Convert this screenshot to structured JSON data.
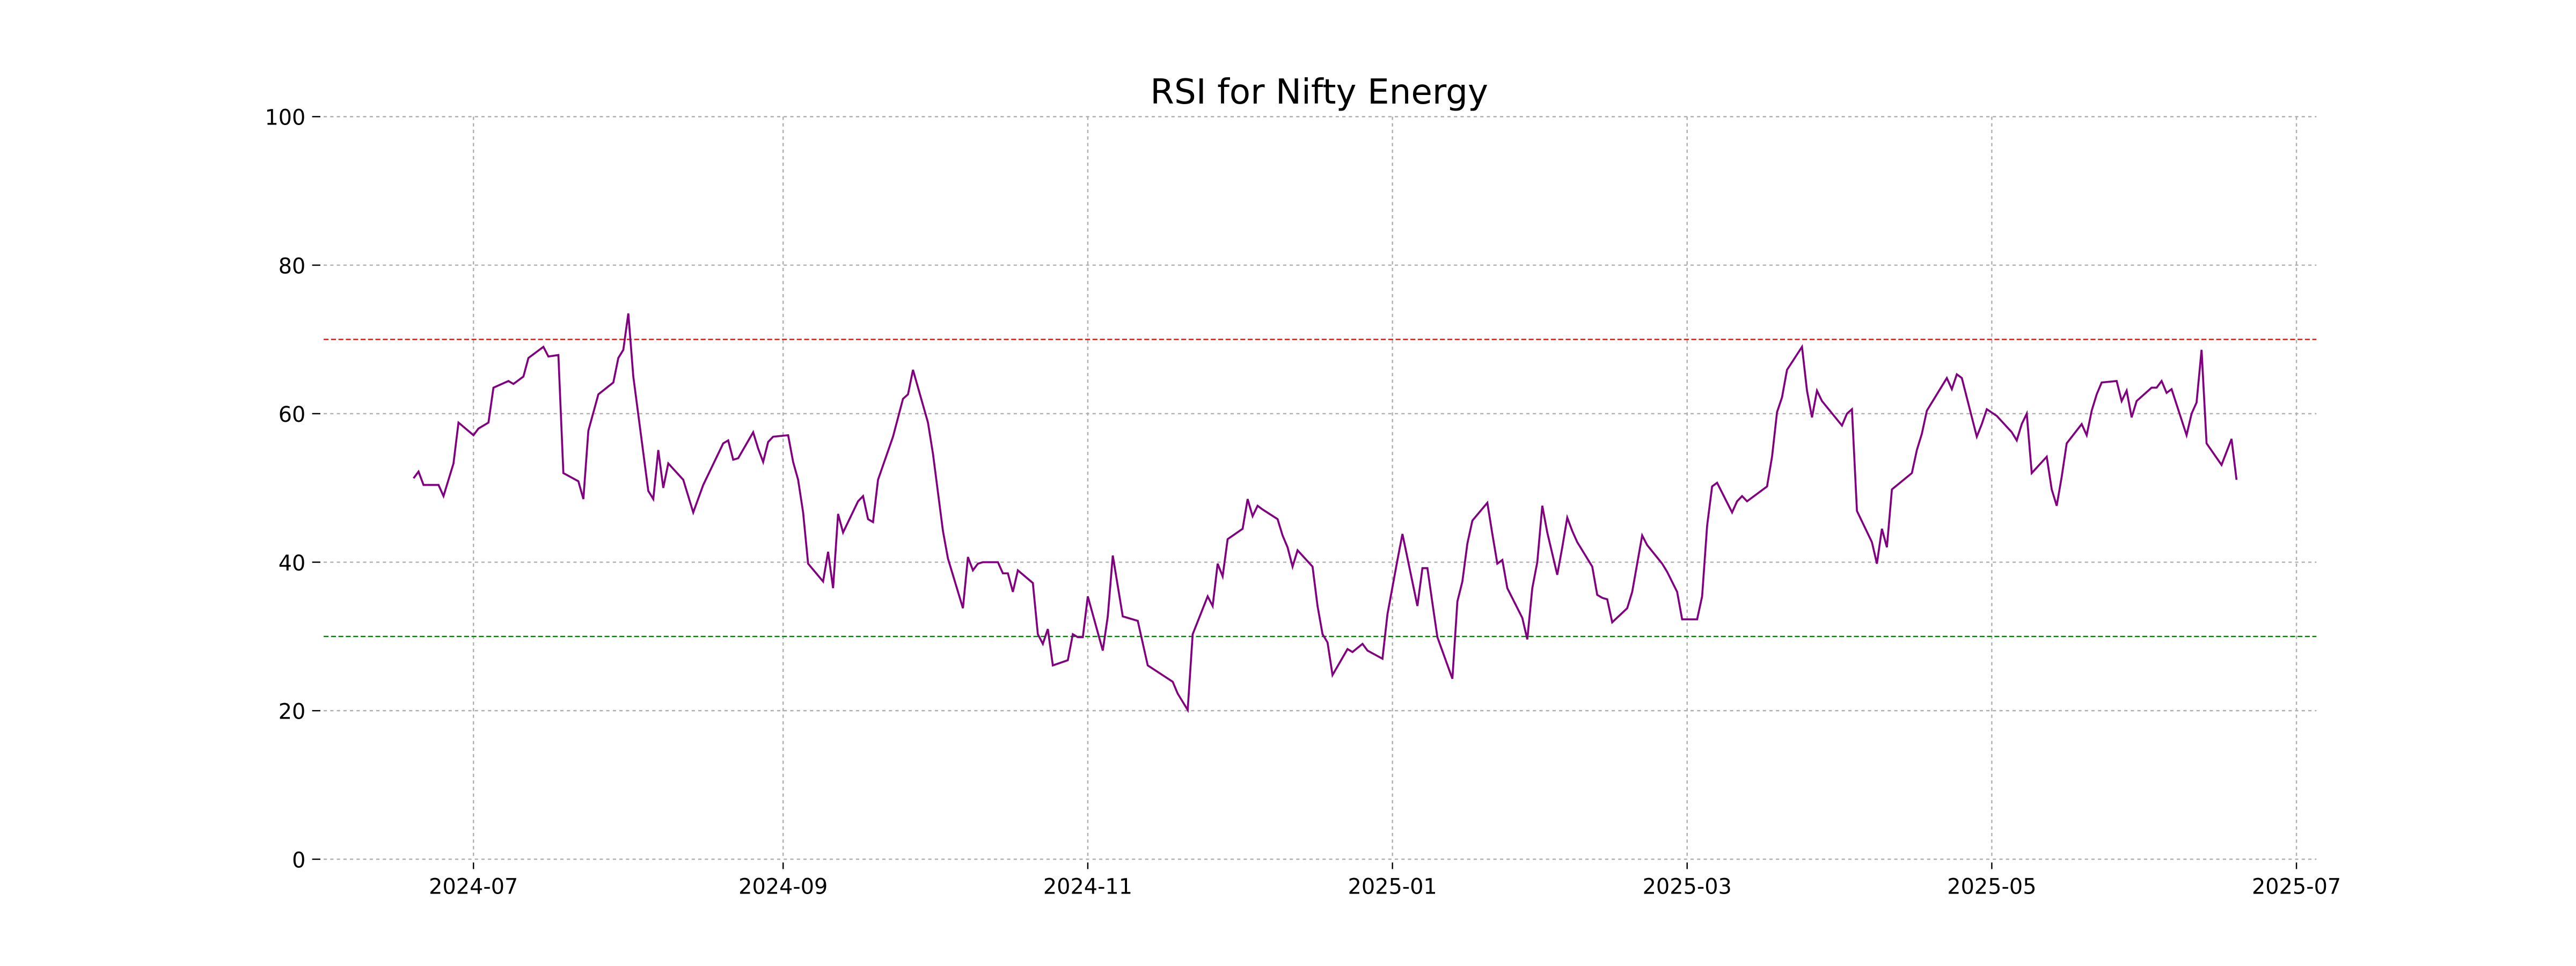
{
  "chart_data": {
    "type": "line",
    "title": "RSI for Nifty Energy",
    "x": [
      "2024-06-19",
      "2024-06-20",
      "2024-06-21",
      "2024-06-24",
      "2024-06-25",
      "2024-06-27",
      "2024-06-28",
      "2024-07-01",
      "2024-07-02",
      "2024-07-04",
      "2024-07-05",
      "2024-07-08",
      "2024-07-09",
      "2024-07-11",
      "2024-07-12",
      "2024-07-15",
      "2024-07-16",
      "2024-07-18",
      "2024-07-19",
      "2024-07-22",
      "2024-07-23",
      "2024-07-24",
      "2024-07-26",
      "2024-07-29",
      "2024-07-30",
      "2024-07-31",
      "2024-08-01",
      "2024-08-02",
      "2024-08-05",
      "2024-08-06",
      "2024-08-07",
      "2024-08-08",
      "2024-08-09",
      "2024-08-12",
      "2024-08-13",
      "2024-08-14",
      "2024-08-16",
      "2024-08-19",
      "2024-08-20",
      "2024-08-21",
      "2024-08-22",
      "2024-08-23",
      "2024-08-26",
      "2024-08-27",
      "2024-08-28",
      "2024-08-29",
      "2024-08-30",
      "2024-09-02",
      "2024-09-03",
      "2024-09-04",
      "2024-09-05",
      "2024-09-06",
      "2024-09-09",
      "2024-09-10",
      "2024-09-11",
      "2024-09-12",
      "2024-09-13",
      "2024-09-16",
      "2024-09-17",
      "2024-09-18",
      "2024-09-19",
      "2024-09-20",
      "2024-09-23",
      "2024-09-25",
      "2024-09-26",
      "2024-09-27",
      "2024-09-30",
      "2024-10-01",
      "2024-10-03",
      "2024-10-04",
      "2024-10-07",
      "2024-10-08",
      "2024-10-09",
      "2024-10-10",
      "2024-10-11",
      "2024-10-14",
      "2024-10-15",
      "2024-10-16",
      "2024-10-17",
      "2024-10-18",
      "2024-10-21",
      "2024-10-22",
      "2024-10-23",
      "2024-10-24",
      "2024-10-25",
      "2024-10-28",
      "2024-10-29",
      "2024-10-30",
      "2024-10-31",
      "2024-11-01",
      "2024-11-04",
      "2024-11-05",
      "2024-11-06",
      "2024-11-08",
      "2024-11-11",
      "2024-11-13",
      "2024-11-18",
      "2024-11-19",
      "2024-11-21",
      "2024-11-22",
      "2024-11-25",
      "2024-11-26",
      "2024-11-27",
      "2024-11-28",
      "2024-11-29",
      "2024-12-02",
      "2024-12-03",
      "2024-12-04",
      "2024-12-05",
      "2024-12-06",
      "2024-12-09",
      "2024-12-10",
      "2024-12-11",
      "2024-12-12",
      "2024-12-13",
      "2024-12-16",
      "2024-12-17",
      "2024-12-18",
      "2024-12-19",
      "2024-12-20",
      "2024-12-23",
      "2024-12-24",
      "2024-12-26",
      "2024-12-27",
      "2024-12-30",
      "2024-12-31",
      "2025-01-02",
      "2025-01-03",
      "2025-01-06",
      "2025-01-07",
      "2025-01-08",
      "2025-01-09",
      "2025-01-10",
      "2025-01-13",
      "2025-01-14",
      "2025-01-15",
      "2025-01-16",
      "2025-01-17",
      "2025-01-20",
      "2025-01-21",
      "2025-01-22",
      "2025-01-23",
      "2025-01-24",
      "2025-01-27",
      "2025-01-28",
      "2025-01-29",
      "2025-01-30",
      "2025-01-31",
      "2025-02-01",
      "2025-02-03",
      "2025-02-04",
      "2025-02-05",
      "2025-02-06",
      "2025-02-07",
      "2025-02-10",
      "2025-02-11",
      "2025-02-12",
      "2025-02-13",
      "2025-02-14",
      "2025-02-17",
      "2025-02-18",
      "2025-02-19",
      "2025-02-20",
      "2025-02-21",
      "2025-02-24",
      "2025-02-25",
      "2025-02-27",
      "2025-02-28",
      "2025-03-03",
      "2025-03-04",
      "2025-03-05",
      "2025-03-06",
      "2025-03-07",
      "2025-03-10",
      "2025-03-11",
      "2025-03-12",
      "2025-03-13",
      "2025-03-17",
      "2025-03-18",
      "2025-03-19",
      "2025-03-20",
      "2025-03-21",
      "2025-03-24",
      "2025-03-25",
      "2025-03-26",
      "2025-03-27",
      "2025-03-28",
      "2025-04-01",
      "2025-04-02",
      "2025-04-03",
      "2025-04-04",
      "2025-04-07",
      "2025-04-08",
      "2025-04-09",
      "2025-04-10",
      "2025-04-11",
      "2025-04-15",
      "2025-04-16",
      "2025-04-17",
      "2025-04-18",
      "2025-04-21",
      "2025-04-22",
      "2025-04-23",
      "2025-04-24",
      "2025-04-25",
      "2025-04-28",
      "2025-04-29",
      "2025-04-30",
      "2025-05-02",
      "2025-05-05",
      "2025-05-06",
      "2025-05-07",
      "2025-05-08",
      "2025-05-09",
      "2025-05-12",
      "2025-05-13",
      "2025-05-14",
      "2025-05-15",
      "2025-05-16",
      "2025-05-19",
      "2025-05-20",
      "2025-05-21",
      "2025-05-22",
      "2025-05-23",
      "2025-05-26",
      "2025-05-27",
      "2025-05-28",
      "2025-05-29",
      "2025-05-30",
      "2025-06-02",
      "2025-06-03",
      "2025-06-04",
      "2025-06-05",
      "2025-06-06",
      "2025-06-09",
      "2025-06-10",
      "2025-06-11",
      "2025-06-12",
      "2025-06-13",
      "2025-06-16",
      "2025-06-18",
      "2025-06-19"
    ],
    "series": [
      {
        "name": "RSI",
        "color": "purple",
        "values": [
          51.3,
          52.2,
          50.4,
          50.4,
          48.9,
          53.3,
          58.8,
          57.1,
          58,
          58.8,
          63.5,
          64.4,
          64,
          65,
          67.5,
          69,
          67.7,
          67.9,
          52,
          50.9,
          48.5,
          57.7,
          62.6,
          64.2,
          67.5,
          68.6,
          73.5,
          65,
          49.6,
          48.5,
          55.1,
          50,
          53.3,
          51.1,
          48.9,
          46.7,
          50.4,
          54.6,
          56,
          56.4,
          53.8,
          54,
          57.5,
          55.3,
          53.5,
          56.2,
          56.9,
          57.1,
          53.5,
          51.1,
          46.7,
          39.8,
          37.4,
          41.4,
          36.5,
          46.5,
          44,
          48.2,
          48.9,
          45.8,
          45.4,
          51.1,
          56.9,
          62,
          62.6,
          65.9,
          58.8,
          54.6,
          44.2,
          40.5,
          33.8,
          40.7,
          38.9,
          39.8,
          40,
          40,
          38.5,
          38.5,
          36,
          38.9,
          37.2,
          30.3,
          29,
          31,
          26.1,
          26.8,
          30.3,
          29.9,
          29.9,
          35.4,
          28.1,
          32.7,
          40.9,
          32.7,
          32.1,
          26.1,
          23.9,
          22.3,
          20.1,
          30.3,
          35.4,
          34.1,
          39.8,
          38.1,
          43.1,
          44.5,
          48.5,
          46.2,
          47.6,
          47.1,
          45.8,
          43.6,
          42,
          39.4,
          41.6,
          39.4,
          34.1,
          30.3,
          29.2,
          24.8,
          28.3,
          27.9,
          29,
          28.1,
          27,
          33,
          40.3,
          43.8,
          34.1,
          39.2,
          39.2,
          34.5,
          29.9,
          24.3,
          34.7,
          37.4,
          42.5,
          45.6,
          48,
          43.8,
          39.8,
          40.3,
          36.5,
          32.5,
          29.6,
          36.5,
          40,
          47.6,
          44,
          38.3,
          42,
          46,
          44.2,
          42.7,
          39.4,
          35.6,
          35.2,
          35,
          31.9,
          33.8,
          36,
          39.8,
          43.6,
          42.3,
          39.8,
          38.7,
          36,
          32.3,
          32.3,
          35.4,
          44.9,
          50.2,
          50.7,
          46.7,
          48.2,
          48.9,
          48.2,
          50.2,
          54.2,
          60.2,
          62.2,
          65.9,
          69,
          63.1,
          59.5,
          63.1,
          61.7,
          58.4,
          60,
          60.6,
          46.9,
          42.7,
          39.8,
          44.5,
          42,
          49.8,
          52,
          55.1,
          57.3,
          60.4,
          63.7,
          64.8,
          63.3,
          65.3,
          64.8,
          56.9,
          58.6,
          60.6,
          59.7,
          57.5,
          56.4,
          58.6,
          60,
          52,
          54.2,
          49.8,
          47.6,
          51.5,
          56,
          58.6,
          57.1,
          60.4,
          62.6,
          64.2,
          64.4,
          61.7,
          63.1,
          59.5,
          61.7,
          63.5,
          63.5,
          64.4,
          62.8,
          63.3,
          57.1,
          60,
          61.5,
          68.6,
          56,
          53.1,
          56.6,
          51.1
        ]
      }
    ],
    "hlines": [
      {
        "value": 70,
        "color": "red"
      },
      {
        "value": 30,
        "color": "green"
      }
    ],
    "xlim": [
      "2024-06-01",
      "2025-07-05"
    ],
    "xticks": [
      {
        "value": "2024-07-01",
        "label": "2024-07"
      },
      {
        "value": "2024-09-01",
        "label": "2024-09"
      },
      {
        "value": "2024-11-01",
        "label": "2024-11"
      },
      {
        "value": "2025-01-01",
        "label": "2025-01"
      },
      {
        "value": "2025-03-01",
        "label": "2025-03"
      },
      {
        "value": "2025-05-01",
        "label": "2025-05"
      },
      {
        "value": "2025-07-01",
        "label": "2025-07"
      }
    ],
    "ylim": [
      0,
      100
    ],
    "yticks": [
      0,
      20,
      40,
      60,
      80,
      100
    ],
    "grid": true
  }
}
